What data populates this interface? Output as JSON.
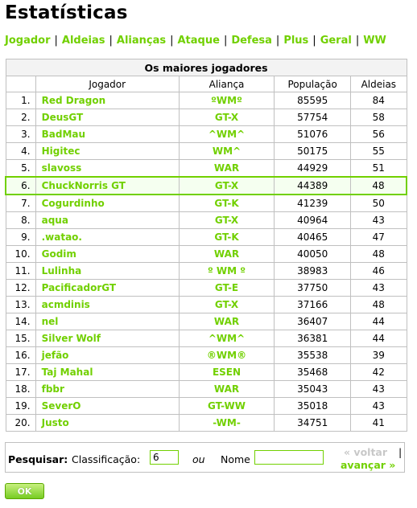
{
  "page": {
    "title": "Estatísticas"
  },
  "nav": {
    "tabs": [
      "Jogador",
      "Aldeias",
      "Alianças",
      "Ataque",
      "Defesa",
      "Plus",
      "Geral",
      "WW"
    ],
    "separator": "|"
  },
  "table": {
    "caption": "Os maiores jogadores",
    "headers": {
      "rank": "",
      "player": "Jogador",
      "alliance": "Aliança",
      "population": "População",
      "villages": "Aldeias"
    },
    "highlighted_rank": "6.",
    "rows": [
      {
        "rank": "1.",
        "player": "Red Dragon",
        "alliance": "ºWMº",
        "population": "85595",
        "villages": "84"
      },
      {
        "rank": "2.",
        "player": "DeusGT",
        "alliance": "GT-X",
        "population": "57754",
        "villages": "58"
      },
      {
        "rank": "3.",
        "player": "BadMau",
        "alliance": "^WM^",
        "population": "51076",
        "villages": "56"
      },
      {
        "rank": "4.",
        "player": "Higitec",
        "alliance": "WM^",
        "population": "50175",
        "villages": "55"
      },
      {
        "rank": "5.",
        "player": "slavoss",
        "alliance": "WAR",
        "population": "44929",
        "villages": "51"
      },
      {
        "rank": "6.",
        "player": "ChuckNorris GT",
        "alliance": "GT-X",
        "population": "44389",
        "villages": "48"
      },
      {
        "rank": "7.",
        "player": "Cogurdinho",
        "alliance": "GT-K",
        "population": "41239",
        "villages": "50"
      },
      {
        "rank": "8.",
        "player": "aqua",
        "alliance": "GT-X",
        "population": "40964",
        "villages": "43"
      },
      {
        "rank": "9.",
        "player": ".watao.",
        "alliance": "GT-K",
        "population": "40465",
        "villages": "47"
      },
      {
        "rank": "10.",
        "player": "Godim",
        "alliance": "WAR",
        "population": "40050",
        "villages": "48"
      },
      {
        "rank": "11.",
        "player": "Lulinha",
        "alliance": "º WM º",
        "population": "38983",
        "villages": "46"
      },
      {
        "rank": "12.",
        "player": "PacificadorGT",
        "alliance": "GT-E",
        "population": "37750",
        "villages": "43"
      },
      {
        "rank": "13.",
        "player": "acmdinis",
        "alliance": "GT-X",
        "population": "37166",
        "villages": "48"
      },
      {
        "rank": "14.",
        "player": "nel",
        "alliance": "WAR",
        "population": "36407",
        "villages": "44"
      },
      {
        "rank": "15.",
        "player": "Silver Wolf",
        "alliance": "^WM^",
        "population": "36381",
        "villages": "44"
      },
      {
        "rank": "16.",
        "player": "jefão",
        "alliance": "®WM®",
        "population": "35538",
        "villages": "39"
      },
      {
        "rank": "17.",
        "player": "Taj Mahal",
        "alliance": "ESEN",
        "population": "35468",
        "villages": "42"
      },
      {
        "rank": "18.",
        "player": "fbbr",
        "alliance": "WAR",
        "population": "35043",
        "villages": "43"
      },
      {
        "rank": "19.",
        "player": "SeverO",
        "alliance": "GT-WW",
        "population": "35018",
        "villages": "43"
      },
      {
        "rank": "20.",
        "player": "Justo",
        "alliance": "-WM-",
        "population": "34751",
        "villages": "41"
      }
    ]
  },
  "search": {
    "label": "Pesquisar:",
    "rank_label": "Classificação:",
    "rank_value": "6",
    "or_label": "ou",
    "name_label": "Nome",
    "name_value": "",
    "back_label": "« voltar",
    "pipe": "|",
    "forward_label": "avançar »"
  },
  "ok_button": {
    "label": "OK"
  },
  "colors": {
    "accent": "#71d000",
    "border": "#c0c0c0",
    "header_bg": "#f3f3f3"
  }
}
